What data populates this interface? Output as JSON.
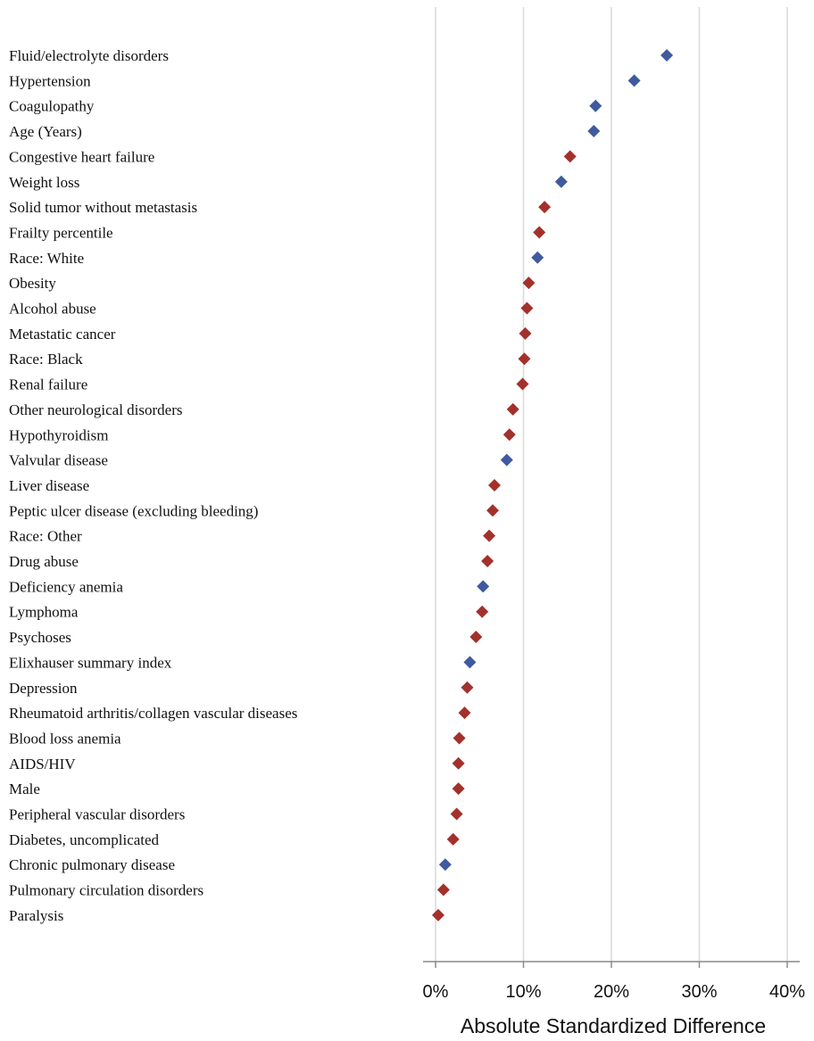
{
  "chart_data": {
    "type": "scatter",
    "title": "",
    "xlabel": "Absolute Standardized Difference",
    "ylabel": "",
    "xlim": [
      0,
      40
    ],
    "x_unit": "%",
    "x_ticks": [
      0,
      10,
      20,
      30,
      40
    ],
    "x_tick_labels": [
      "0%",
      "10%",
      "20%",
      "30%",
      "40%"
    ],
    "grid": "vertical",
    "legend": "none",
    "marker": "diamond",
    "colors": {
      "blue": "#3f5a9e",
      "red": "#a3312b",
      "grid": "#d9d9d9",
      "axis": "#8a8a8a"
    },
    "categories": [
      "Fluid/electrolyte disorders",
      "Hypertension",
      "Coagulopathy",
      "Age (Years)",
      "Congestive heart failure",
      "Weight loss",
      "Solid tumor without metastasis",
      "Frailty percentile",
      "Race: White",
      "Obesity",
      "Alcohol abuse",
      "Metastatic cancer",
      "Race: Black",
      "Renal failure",
      "Other neurological disorders",
      "Hypothyroidism",
      "Valvular disease",
      "Liver disease",
      "Peptic ulcer disease (excluding bleeding)",
      "Race: Other",
      "Drug abuse",
      "Deficiency anemia",
      "Lymphoma",
      "Psychoses",
      "Elixhauser summary index",
      "Depression",
      "Rheumatoid arthritis/collagen vascular diseases",
      "Blood loss anemia",
      "AIDS/HIV",
      "Male",
      "Peripheral vascular disorders",
      "Diabetes, uncomplicated",
      "Chronic pulmonary disease",
      "Pulmonary circulation disorders",
      "Paralysis"
    ],
    "values": [
      26.3,
      22.6,
      18.2,
      18.0,
      15.3,
      14.3,
      12.4,
      11.8,
      11.6,
      10.6,
      10.4,
      10.2,
      10.1,
      9.9,
      8.8,
      8.4,
      8.1,
      6.7,
      6.5,
      6.1,
      5.9,
      5.4,
      5.3,
      4.6,
      3.9,
      3.6,
      3.3,
      2.7,
      2.6,
      2.6,
      2.4,
      2.0,
      1.1,
      0.9,
      0.3
    ],
    "point_colors": [
      "blue",
      "blue",
      "blue",
      "blue",
      "red",
      "blue",
      "red",
      "red",
      "blue",
      "red",
      "red",
      "red",
      "red",
      "red",
      "red",
      "red",
      "blue",
      "red",
      "red",
      "red",
      "red",
      "blue",
      "red",
      "red",
      "blue",
      "red",
      "red",
      "red",
      "red",
      "red",
      "red",
      "red",
      "blue",
      "red",
      "red"
    ]
  }
}
